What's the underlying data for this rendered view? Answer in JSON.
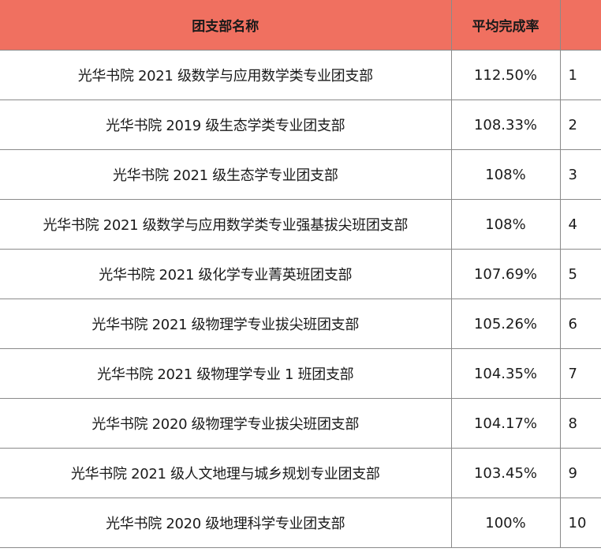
{
  "header": {
    "name_col": "团支部名称",
    "rate_col": "平均完成率",
    "rank_col": ""
  },
  "rows": [
    {
      "name": "光华书院 2021 级数学与应用数学类专业团支部",
      "rate": "112.50%",
      "rank": "1"
    },
    {
      "name": "光华书院 2019 级生态学类专业团支部",
      "rate": "108.33%",
      "rank": "2"
    },
    {
      "name": "光华书院 2021 级生态学专业团支部",
      "rate": "108%",
      "rank": "3"
    },
    {
      "name": "光华书院 2021 级数学与应用数学类专业强基拔尖班团支部",
      "rate": "108%",
      "rank": "4"
    },
    {
      "name": "光华书院 2021 级化学专业菁英班团支部",
      "rate": "107.69%",
      "rank": "5"
    },
    {
      "name": "光华书院 2021 级物理学专业拔尖班团支部",
      "rate": "105.26%",
      "rank": "6"
    },
    {
      "name": "光华书院 2021 级物理学专业 1 班团支部",
      "rate": "104.35%",
      "rank": "7"
    },
    {
      "name": "光华书院 2020 级物理学专业拔尖班团支部",
      "rate": "104.17%",
      "rank": "8"
    },
    {
      "name": "光华书院 2021 级人文地理与城乡规划专业团支部",
      "rate": "103.45%",
      "rank": "9"
    },
    {
      "name": "光华书院 2020 级地理科学专业团支部",
      "rate": "100%",
      "rank": "10"
    }
  ],
  "colors": {
    "header_bg": "#f07060",
    "border": "#8a8a8a"
  }
}
